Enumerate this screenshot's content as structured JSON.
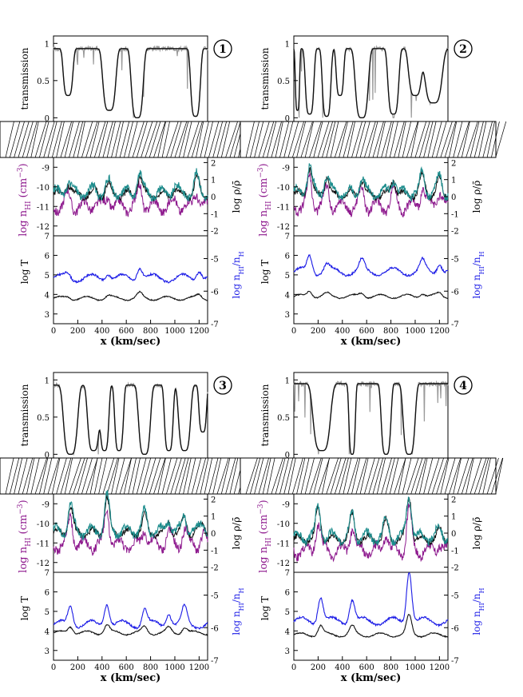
{
  "colors": {
    "axes": "#000000",
    "transmission_sim": "#111111",
    "transmission_obs": "#9a9a9a",
    "n_hi": "#8e1a8e",
    "density": "#1c8c8c",
    "n_h_black": "#111111",
    "temperature": "#111111",
    "ion_fraction": "#1a1ae6"
  },
  "labels": {
    "transmission": "transmission",
    "n_hi": "log n",
    "n_hi_sub": "HI",
    "n_hi_unit": " (cm",
    "n_hi_exp": "−3",
    "n_hi_close": ")",
    "log_rho": "log ρ/ρ̄",
    "log_t": "log T",
    "ion_frac": "log n",
    "ion_frac_sub1": "HI",
    "ion_frac_mid": "/n",
    "ion_frac_sub2": "H",
    "xlabel": "x (km/sec)"
  },
  "chart_data": [
    {
      "type": "line",
      "panel_number": "1",
      "xlim": [
        0,
        1270
      ],
      "x_ticks": [
        "0",
        "200",
        "400",
        "600",
        "800",
        "1000",
        "1200"
      ],
      "transmission": {
        "ylim": [
          -0.05,
          1.1
        ],
        "y_ticks": [
          "0",
          "0.5",
          "1"
        ],
        "dips": [
          [
            120,
            0.3,
            45
          ],
          [
            460,
            0.1,
            60
          ],
          [
            690,
            0.0,
            55
          ],
          [
            1170,
            0.02,
            45
          ]
        ],
        "base": 0.93
      },
      "density": {
        "left_ylim": [
          -12.5,
          -8.5
        ],
        "left_ticks": [
          "-9",
          "-10",
          "-11",
          "-12"
        ],
        "right_ylim": [
          -2.3,
          2.3
        ],
        "right_ticks": [
          "2",
          "1",
          "0",
          "-1",
          "-2"
        ],
        "peaks": [
          [
            120,
            -9.8
          ],
          [
            340,
            -10.2
          ],
          [
            450,
            -9.9
          ],
          [
            710,
            -9.4
          ],
          [
            1000,
            -10.1
          ],
          [
            1180,
            -9.6
          ]
        ],
        "base": -10.4
      },
      "temperature": {
        "left_ylim": [
          2.5,
          7
        ],
        "left_ticks": [
          "7",
          "6",
          "5",
          "4",
          "3"
        ],
        "right_ylim": [
          -7,
          -4.3
        ],
        "right_ticks": [
          "-5",
          "-6",
          "-7"
        ],
        "t_base": 3.8,
        "ion_base": -5.6,
        "peaks": [
          [
            120,
            0.15
          ],
          [
            450,
            0.2
          ],
          [
            710,
            0.4
          ],
          [
            1200,
            0.3
          ]
        ]
      }
    },
    {
      "type": "line",
      "panel_number": "2",
      "xlim": [
        0,
        1270
      ],
      "x_ticks": [
        "0",
        "200",
        "400",
        "600",
        "800",
        "1000",
        "1200"
      ],
      "transmission": {
        "ylim": [
          -0.05,
          1.1
        ],
        "y_ticks": [
          "0",
          "0.5",
          "1"
        ],
        "dips": [
          [
            30,
            0.1,
            20
          ],
          [
            130,
            0.05,
            40
          ],
          [
            270,
            0.02,
            40
          ],
          [
            380,
            0.3,
            35
          ],
          [
            560,
            0.0,
            60
          ],
          [
            820,
            0.05,
            50
          ],
          [
            1000,
            0.3,
            60
          ],
          [
            1150,
            0.2,
            80
          ]
        ],
        "base": 0.93
      },
      "density": {
        "left_ylim": [
          -12.5,
          -8.5
        ],
        "left_ticks": [
          "-9",
          "-10",
          "-11",
          "-12"
        ],
        "right_ylim": [
          -2.3,
          2.3
        ],
        "right_ticks": [
          "2",
          "1",
          "0",
          "-1",
          "-2"
        ],
        "peaks": [
          [
            130,
            -9.0
          ],
          [
            270,
            -9.5
          ],
          [
            560,
            -9.6
          ],
          [
            820,
            -9.6
          ],
          [
            1060,
            -9.4
          ],
          [
            1200,
            -9.6
          ]
        ],
        "base": -10.4
      },
      "temperature": {
        "left_ylim": [
          2.5,
          7
        ],
        "left_ticks": [
          "7",
          "6",
          "5",
          "4",
          "3"
        ],
        "right_ylim": [
          -7,
          -4.3
        ],
        "right_ticks": [
          "-5",
          "-6",
          "-7"
        ],
        "t_base": 3.9,
        "ion_base": -5.4,
        "peaks": [
          [
            130,
            0.5
          ],
          [
            270,
            0.2
          ],
          [
            560,
            0.3
          ],
          [
            1060,
            0.3
          ],
          [
            1200,
            0.3
          ]
        ]
      }
    },
    {
      "type": "line",
      "panel_number": "3",
      "xlim": [
        0,
        1270
      ],
      "x_ticks": [
        "0",
        "200",
        "400",
        "600",
        "800",
        "1000",
        "1200"
      ],
      "transmission": {
        "ylim": [
          -0.05,
          1.1
        ],
        "y_ticks": [
          "0",
          "0.5",
          "1"
        ],
        "dips": [
          [
            140,
            0.0,
            65
          ],
          [
            330,
            0.05,
            55
          ],
          [
            420,
            0.05,
            40
          ],
          [
            540,
            0.05,
            40
          ],
          [
            750,
            0.0,
            55
          ],
          [
            950,
            0.05,
            40
          ],
          [
            1080,
            0.05,
            55
          ],
          [
            1230,
            0.3,
            35
          ]
        ],
        "base": 0.93
      },
      "density": {
        "left_ylim": [
          -12.5,
          -8.5
        ],
        "left_ticks": [
          "-9",
          "-10",
          "-11",
          "-12"
        ],
        "right_ylim": [
          -2.3,
          2.3
        ],
        "right_ticks": [
          "2",
          "1",
          "0",
          "-1",
          "-2"
        ],
        "peaks": [
          [
            140,
            -9.1
          ],
          [
            440,
            -8.7
          ],
          [
            750,
            -9.6
          ],
          [
            950,
            -9.9
          ],
          [
            1080,
            -9.7
          ],
          [
            1230,
            -10.0
          ]
        ],
        "base": -10.5
      },
      "temperature": {
        "left_ylim": [
          2.5,
          7
        ],
        "left_ticks": [
          "7",
          "6",
          "5",
          "4",
          "3"
        ],
        "right_ylim": [
          -7,
          -4.3
        ],
        "right_ticks": [
          "-5",
          "-6",
          "-7"
        ],
        "t_base": 3.9,
        "ion_base": -5.9,
        "peaks": [
          [
            140,
            0.6
          ],
          [
            440,
            0.7
          ],
          [
            750,
            0.5
          ],
          [
            950,
            0.4
          ],
          [
            1080,
            0.5
          ]
        ]
      }
    },
    {
      "type": "line",
      "panel_number": "4",
      "xlim": [
        0,
        1270
      ],
      "x_ticks": [
        "0",
        "200",
        "400",
        "600",
        "800",
        "1000",
        "1200"
      ],
      "transmission": {
        "ylim": [
          -0.05,
          1.1
        ],
        "y_ticks": [
          "0",
          "0.5",
          "1"
        ],
        "dips": [
          [
            230,
            0.05,
            80
          ],
          [
            480,
            0.0,
            30
          ],
          [
            760,
            0.0,
            45
          ],
          [
            950,
            0.0,
            55
          ]
        ],
        "base": 0.95
      },
      "density": {
        "left_ylim": [
          -12.5,
          -8.5
        ],
        "left_ticks": [
          "-9",
          "-10",
          "-11",
          "-12"
        ],
        "right_ylim": [
          -2.3,
          2.3
        ],
        "right_ticks": [
          "2",
          "1",
          "0",
          "-1",
          "-2"
        ],
        "peaks": [
          [
            200,
            -9.3
          ],
          [
            480,
            -9.6
          ],
          [
            760,
            -9.9
          ],
          [
            950,
            -8.6
          ],
          [
            1200,
            -10.4
          ]
        ],
        "base": -10.8
      },
      "temperature": {
        "left_ylim": [
          2.5,
          7
        ],
        "left_ticks": [
          "7",
          "6",
          "5",
          "4",
          "3"
        ],
        "right_ylim": [
          -7,
          -4.3
        ],
        "right_ticks": [
          "-5",
          "-6",
          "-7"
        ],
        "t_base": 3.8,
        "ion_base": -5.8,
        "peaks": [
          [
            220,
            0.8
          ],
          [
            480,
            0.7
          ],
          [
            950,
            1.6
          ]
        ]
      }
    }
  ]
}
